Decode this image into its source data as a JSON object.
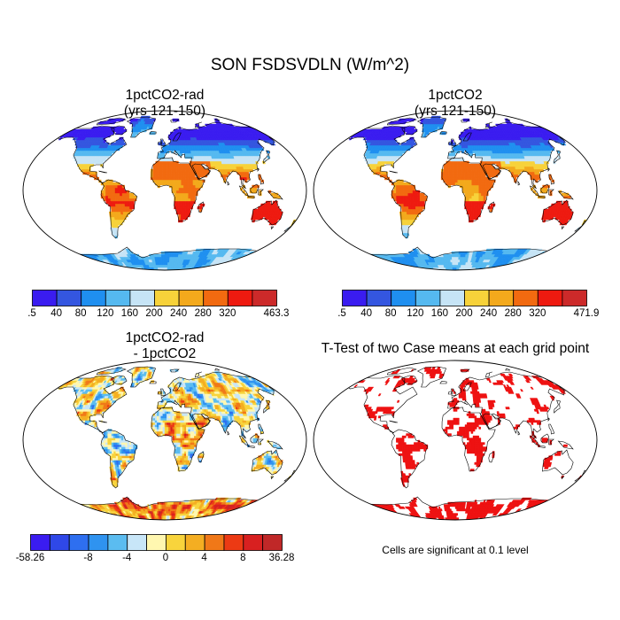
{
  "title": "SON FSDSVDLN (W/m^2)",
  "panels": {
    "top_left": {
      "title_line1": "1pctCO2-rad",
      "title_line2": "(yrs 121-150)"
    },
    "top_right": {
      "title_line1": "1pctCO2",
      "title_line2": "(yrs 121-150)"
    },
    "bottom_left": {
      "title_line1": "1pctCO2-rad",
      "title_line2": "- 1pctCO2"
    },
    "bottom_right": {
      "title_line1": "T-Test of two Case means at each grid point"
    }
  },
  "colorbars": {
    "top_left": {
      "labels": [
        ".5",
        "40",
        "80",
        "120",
        "160",
        "200",
        "240",
        "280",
        "320",
        "463.3"
      ],
      "colors": [
        "#3a1cf0",
        "#3456e0",
        "#1f8ff0",
        "#55b9f0",
        "#c6e4f6",
        "#f7d23a",
        "#f3a91c",
        "#f26a10",
        "#ee1a10",
        "#cc2a2a"
      ]
    },
    "top_right": {
      "labels": [
        ".5",
        "40",
        "80",
        "120",
        "160",
        "200",
        "240",
        "280",
        "320",
        "471.9"
      ],
      "colors": [
        "#3a1cf0",
        "#3456e0",
        "#1f8ff0",
        "#55b9f0",
        "#c6e4f6",
        "#f7d23a",
        "#f3a91c",
        "#f26a10",
        "#ee1a10",
        "#cc2a2a"
      ]
    },
    "bottom_left": {
      "labels": [
        "-58.26",
        "-8",
        "-4",
        "0",
        "4",
        "8",
        "36.28"
      ],
      "colors": [
        "#3a1cf0",
        "#2f48e8",
        "#2e6ff0",
        "#2f93f0",
        "#5bbcf0",
        "#c8e6f8",
        "#fff7b0",
        "#f8d43c",
        "#f4ae22",
        "#f07818",
        "#ec3a14",
        "#d82020",
        "#c02828"
      ]
    }
  },
  "significance_note": "Cells are significant at 0.1 level"
}
